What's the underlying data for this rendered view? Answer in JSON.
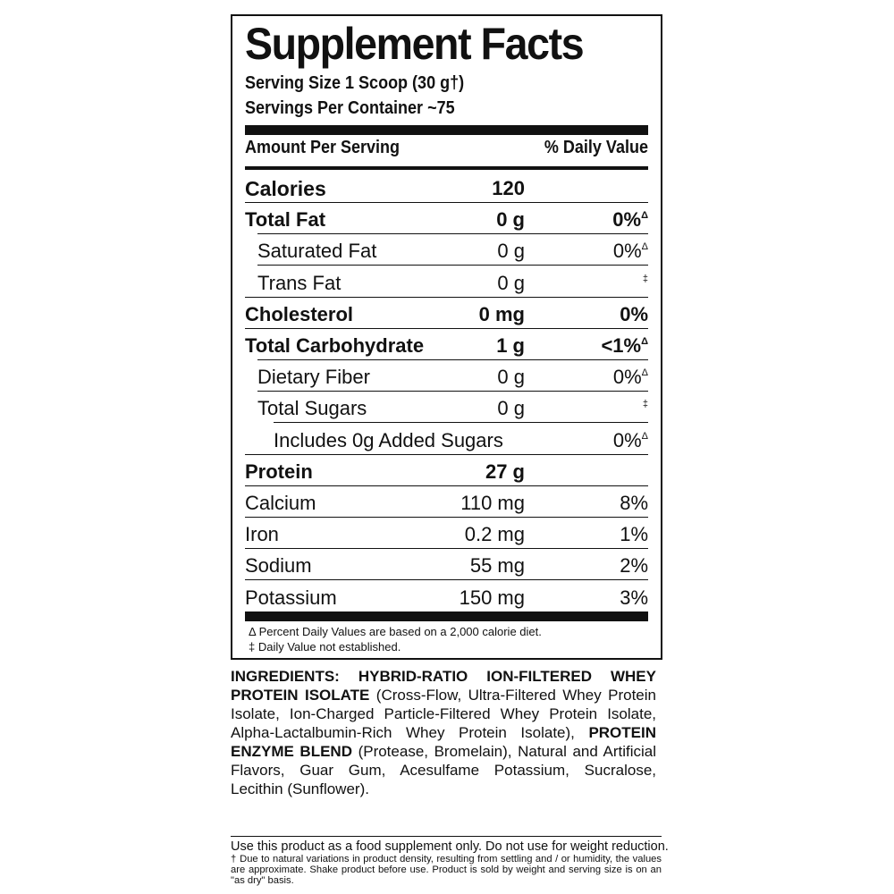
{
  "title": "Supplement Facts",
  "serving_size": "Serving Size 1 Scoop (30 g†)",
  "servings_per_container": "Servings Per Container ~75",
  "amount_header": "Amount Per Serving",
  "dv_header": "% Daily Value",
  "rows": [
    {
      "name": "Calories",
      "amount": "120",
      "dv": "",
      "sym": ""
    },
    {
      "name": "Total Fat",
      "amount": "0 g",
      "dv": "0%",
      "sym": "Δ"
    },
    {
      "name": "Saturated Fat",
      "amount": "0 g",
      "dv": "0%",
      "sym": "Δ"
    },
    {
      "name": "Trans Fat",
      "amount": "0 g",
      "dv": "",
      "sym": "‡"
    },
    {
      "name": "Cholesterol",
      "amount": "0 mg",
      "dv": "0%",
      "sym": ""
    },
    {
      "name": "Total Carbohydrate",
      "amount": "1 g",
      "dv": "<1%",
      "sym": "Δ"
    },
    {
      "name": "Dietary Fiber",
      "amount": "0 g",
      "dv": "0%",
      "sym": "Δ"
    },
    {
      "name": "Total Sugars",
      "amount": "0 g",
      "dv": "",
      "sym": "‡"
    },
    {
      "name": "Includes 0g Added Sugars",
      "amount": "",
      "dv": "0%",
      "sym": "Δ"
    },
    {
      "name": "Protein",
      "amount": "27 g",
      "dv": "",
      "sym": ""
    },
    {
      "name": "Calcium",
      "amount": "110 mg",
      "dv": "8%",
      "sym": ""
    },
    {
      "name": "Iron",
      "amount": "0.2 mg",
      "dv": "1%",
      "sym": ""
    },
    {
      "name": "Sodium",
      "amount": "55 mg",
      "dv": "2%",
      "sym": ""
    },
    {
      "name": "Potassium",
      "amount": "150 mg",
      "dv": "3%",
      "sym": ""
    }
  ],
  "footnotes": [
    "Δ Percent Daily Values are based on a 2,000 calorie diet.",
    "‡ Daily Value not established."
  ],
  "ingredients": {
    "label": "INGREDIENTS: HYBRID-RATIO ION-FILTERED WHEY PROTEIN ISOLATE",
    "part1": " (Cross-Flow, Ultra-Filtered Whey Protein Isolate, Ion-Charged Particle-Filtered Whey Protein Isolate, Alpha-Lactalbumin-Rich Whey Protein Isolate), ",
    "bold2": "PROTEIN ENZYME BLEND",
    "part2": " (Protease, Bromelain), Natural and Artificial Flavors, Guar Gum, Acesulfame Potassium, Sucralose, Lecithin (Sunflower)."
  },
  "footer": {
    "warning": "Use this product as a food supplement only. Do not use for weight reduction.",
    "note": "† Due to natural variations in product density, resulting from settling and / or humidity, the values are approximate. Shake product before use. Product is sold by weight and serving size is on an \"as dry\" basis."
  }
}
